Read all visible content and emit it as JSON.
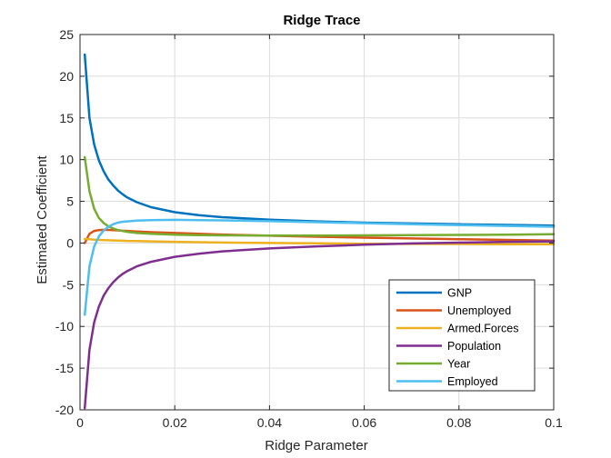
{
  "chart_data": {
    "type": "line",
    "title": "Ridge Trace",
    "xlabel": "Ridge Parameter",
    "ylabel": "Estimated Coefficient",
    "xlim": [
      0,
      0.1
    ],
    "ylim": [
      -20,
      25
    ],
    "xticks": [
      0,
      0.02,
      0.04,
      0.06,
      0.08,
      0.1
    ],
    "xtick_labels": [
      "0",
      "0.02",
      "0.04",
      "0.06",
      "0.08",
      "0.1"
    ],
    "yticks": [
      -20,
      -15,
      -10,
      -5,
      0,
      5,
      10,
      15,
      20,
      25
    ],
    "ytick_labels": [
      "-20",
      "-15",
      "-10",
      "-5",
      "0",
      "5",
      "10",
      "15",
      "20",
      "25"
    ],
    "grid": true,
    "legend_position": "bottom-right",
    "x": [
      0.001,
      0.002,
      0.003,
      0.004,
      0.005,
      0.006,
      0.007,
      0.008,
      0.009,
      0.01,
      0.012,
      0.015,
      0.02,
      0.025,
      0.03,
      0.04,
      0.05,
      0.06,
      0.07,
      0.08,
      0.09,
      0.1
    ],
    "series": [
      {
        "name": "GNP",
        "color": "#0072BD",
        "values": [
          22.6,
          15.0,
          11.8,
          9.9,
          8.6,
          7.6,
          6.9,
          6.3,
          5.85,
          5.45,
          4.9,
          4.3,
          3.7,
          3.35,
          3.1,
          2.8,
          2.6,
          2.45,
          2.35,
          2.25,
          2.17,
          2.1
        ]
      },
      {
        "name": "Unemployed",
        "color": "#D95319",
        "values": [
          0.0,
          1.1,
          1.45,
          1.55,
          1.58,
          1.57,
          1.55,
          1.52,
          1.48,
          1.45,
          1.38,
          1.3,
          1.2,
          1.1,
          1.02,
          0.88,
          0.76,
          0.65,
          0.55,
          0.46,
          0.38,
          0.3
        ]
      },
      {
        "name": "Armed.Forces",
        "color": "#EDB120",
        "values": [
          0.5,
          0.45,
          0.4,
          0.38,
          0.35,
          0.33,
          0.31,
          0.3,
          0.28,
          0.26,
          0.24,
          0.2,
          0.15,
          0.1,
          0.06,
          0.0,
          -0.04,
          -0.08,
          -0.1,
          -0.12,
          -0.14,
          -0.15
        ]
      },
      {
        "name": "Population",
        "color": "#7E2F8E",
        "values": [
          -19.8,
          -12.8,
          -9.5,
          -7.6,
          -6.3,
          -5.4,
          -4.7,
          -4.15,
          -3.7,
          -3.35,
          -2.8,
          -2.25,
          -1.65,
          -1.28,
          -1.0,
          -0.65,
          -0.4,
          -0.2,
          -0.05,
          0.05,
          0.15,
          0.2
        ]
      },
      {
        "name": "Year",
        "color": "#77AC30",
        "values": [
          10.3,
          6.2,
          4.1,
          3.0,
          2.4,
          2.0,
          1.75,
          1.55,
          1.45,
          1.35,
          1.2,
          1.1,
          1.0,
          0.95,
          0.92,
          0.9,
          0.9,
          0.92,
          0.95,
          0.98,
          1.0,
          1.05
        ]
      },
      {
        "name": "Employed",
        "color": "#4DBEEE",
        "values": [
          -8.6,
          -2.8,
          -0.4,
          0.8,
          1.5,
          1.95,
          2.25,
          2.45,
          2.55,
          2.6,
          2.7,
          2.75,
          2.78,
          2.75,
          2.72,
          2.62,
          2.5,
          2.38,
          2.25,
          2.15,
          2.05,
          1.95
        ]
      }
    ]
  }
}
